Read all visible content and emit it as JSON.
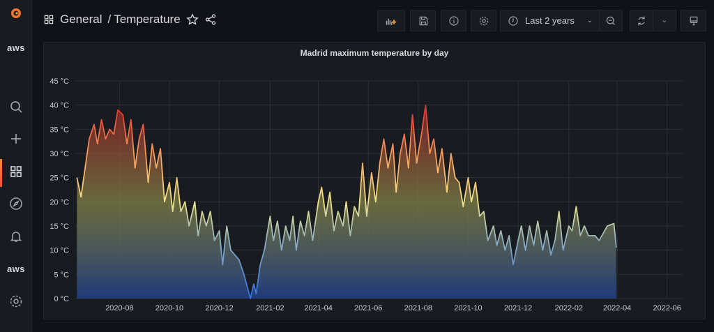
{
  "sidebar": {
    "items": [
      {
        "name": "grafana-logo-icon"
      },
      {
        "label": "aws"
      },
      {
        "name": "search-icon"
      },
      {
        "name": "plus-icon"
      },
      {
        "name": "dashboards-icon",
        "active": true
      },
      {
        "name": "explore-compass-icon"
      },
      {
        "name": "alerting-bell-icon"
      },
      {
        "label": "aws"
      },
      {
        "name": "configuration-gear-icon"
      }
    ]
  },
  "header": {
    "folder": "General",
    "separator": "/",
    "title": "Temperature",
    "time_range": "Last 2 years"
  },
  "colors": {
    "accent": "#f5542d",
    "background": "#111217",
    "panel": "#181b1f"
  },
  "panel": {
    "title": "Madrid maximum temperature by day"
  },
  "chart_data": {
    "type": "area",
    "title": "Madrid maximum temperature by day",
    "y_unit": "°C",
    "ylim": [
      0,
      45
    ],
    "y_ticks": [
      "0 °C",
      "5 °C",
      "10 °C",
      "15 °C",
      "20 °C",
      "25 °C",
      "30 °C",
      "35 °C",
      "40 °C",
      "45 °C"
    ],
    "x_ticks": [
      "2020-08",
      "2020-10",
      "2020-12",
      "2021-02",
      "2021-04",
      "2021-06",
      "2021-08",
      "2021-10",
      "2021-12",
      "2022-02",
      "2022-04",
      "2022-06"
    ],
    "xlim": [
      "2020-06-08",
      "2022-06-20"
    ],
    "grid": true,
    "color_scheme": "blue-yellow-red by value",
    "series": [
      {
        "x": [
          "2020-06-10",
          "2020-06-15",
          "2020-06-20",
          "2020-06-25",
          "2020-07-01",
          "2020-07-05",
          "2020-07-10",
          "2020-07-15",
          "2020-07-20",
          "2020-07-25",
          "2020-07-30",
          "2020-08-05",
          "2020-08-10",
          "2020-08-15",
          "2020-08-20",
          "2020-08-25",
          "2020-08-30",
          "2020-09-05",
          "2020-09-10",
          "2020-09-15",
          "2020-09-20",
          "2020-09-25",
          "2020-10-01",
          "2020-10-05",
          "2020-10-10",
          "2020-10-15",
          "2020-10-20",
          "2020-10-25",
          "2020-11-01",
          "2020-11-05",
          "2020-11-10",
          "2020-11-15",
          "2020-11-20",
          "2020-11-25",
          "2020-12-01",
          "2020-12-05",
          "2020-12-10",
          "2020-12-15",
          "2020-12-20",
          "2020-12-25",
          "2020-12-31",
          "2021-01-08",
          "2021-01-12",
          "2021-01-15",
          "2021-01-20",
          "2021-01-25",
          "2021-02-01",
          "2021-02-05",
          "2021-02-10",
          "2021-02-15",
          "2021-02-20",
          "2021-02-25",
          "2021-03-01",
          "2021-03-05",
          "2021-03-10",
          "2021-03-15",
          "2021-03-20",
          "2021-03-25",
          "2021-04-01",
          "2021-04-05",
          "2021-04-10",
          "2021-04-15",
          "2021-04-20",
          "2021-04-25",
          "2021-05-01",
          "2021-05-05",
          "2021-05-10",
          "2021-05-15",
          "2021-05-20",
          "2021-05-25",
          "2021-05-30",
          "2021-06-05",
          "2021-06-10",
          "2021-06-15",
          "2021-06-20",
          "2021-06-25",
          "2021-07-01",
          "2021-07-05",
          "2021-07-10",
          "2021-07-15",
          "2021-07-20",
          "2021-07-25",
          "2021-07-30",
          "2021-08-05",
          "2021-08-10",
          "2021-08-15",
          "2021-08-20",
          "2021-08-25",
          "2021-08-30",
          "2021-09-05",
          "2021-09-10",
          "2021-09-15",
          "2021-09-20",
          "2021-09-25",
          "2021-10-01",
          "2021-10-05",
          "2021-10-10",
          "2021-10-15",
          "2021-10-20",
          "2021-10-25",
          "2021-11-01",
          "2021-11-05",
          "2021-11-10",
          "2021-11-15",
          "2021-11-20",
          "2021-11-25",
          "2021-12-01",
          "2021-12-05",
          "2021-12-10",
          "2021-12-15",
          "2021-12-20",
          "2021-12-25",
          "2021-12-31",
          "2022-01-05",
          "2022-01-10",
          "2022-01-15",
          "2022-01-20",
          "2022-01-25",
          "2022-02-01",
          "2022-02-05",
          "2022-02-10",
          "2022-02-15",
          "2022-02-20",
          "2022-02-25",
          "2022-03-05",
          "2022-03-10",
          "2022-03-20",
          "2022-03-28",
          "2022-03-31"
        ],
        "y": [
          25,
          21,
          27,
          33,
          36,
          32,
          37,
          33,
          35,
          34,
          39,
          38,
          32,
          37,
          27,
          33,
          36,
          24,
          32,
          27,
          31,
          20,
          24,
          18,
          25,
          18,
          20,
          15,
          20,
          13,
          18,
          15,
          18,
          12,
          14,
          7,
          15,
          10,
          9,
          8,
          5,
          0,
          3,
          1,
          7,
          10,
          17,
          12,
          16,
          10,
          15,
          12,
          17,
          10,
          16,
          13,
          18,
          12,
          20,
          23,
          17,
          22,
          14,
          18,
          15,
          20,
          13,
          19,
          17,
          28,
          17,
          26,
          20,
          28,
          33,
          27,
          32,
          22,
          30,
          34,
          27,
          38,
          28,
          34,
          40,
          30,
          33,
          26,
          31,
          22,
          30,
          25,
          24,
          19,
          25,
          20,
          24,
          17,
          18,
          12,
          15,
          11,
          14,
          10,
          13,
          7,
          12,
          15,
          10,
          15,
          11,
          16,
          10,
          14,
          9,
          12,
          18,
          10,
          15,
          14,
          19,
          13,
          15,
          13,
          13,
          12,
          15,
          15.5,
          10.5
        ]
      }
    ]
  }
}
